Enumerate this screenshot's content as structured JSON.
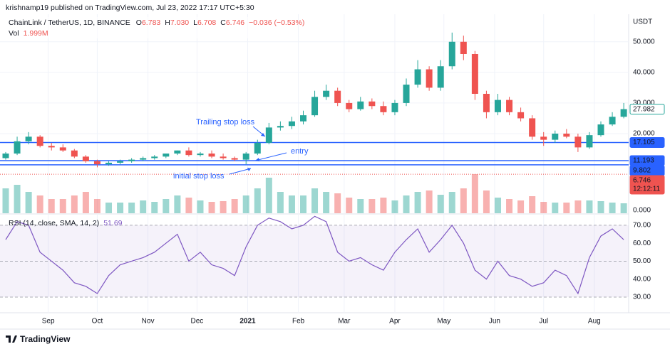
{
  "header": {
    "published": "krishnamp19 published on TradingView.com, Jul 23, 2022 17:17 UTC+5:30"
  },
  "chart_data": {
    "type": "candlestick",
    "legend": {
      "symbol": "ChainLink / TetherUS, 1D, BINANCE",
      "fields": [
        {
          "key": "O",
          "value": "6.783"
        },
        {
          "key": "H",
          "value": "7.030"
        },
        {
          "key": "L",
          "value": "6.708"
        },
        {
          "key": "C",
          "value": "6.746"
        }
      ],
      "change": "−0.036 (−0.53%)",
      "volume_label": "Vol",
      "volume_value": "1.999M"
    },
    "unit": "USDT",
    "x": [
      0,
      7,
      14,
      21,
      28,
      35,
      42,
      49,
      56,
      63,
      70,
      77,
      84,
      91,
      98,
      105,
      112,
      119,
      126,
      133,
      140,
      147,
      154,
      161,
      168,
      175,
      182,
      189,
      196,
      203,
      210,
      217,
      224,
      231,
      238,
      245,
      252,
      259,
      266,
      273,
      280,
      287,
      294,
      301,
      308,
      315,
      322,
      329,
      336,
      343,
      350,
      357,
      364,
      371,
      378
    ],
    "xlim": [
      0,
      381
    ],
    "xticks": [
      {
        "value": 26,
        "label": "Sep"
      },
      {
        "value": 56,
        "label": "Oct"
      },
      {
        "value": 87,
        "label": "Nov"
      },
      {
        "value": 117,
        "label": "Dec"
      },
      {
        "value": 148,
        "label": "2021"
      },
      {
        "value": 179,
        "label": "Feb"
      },
      {
        "value": 207,
        "label": "Mar"
      },
      {
        "value": 238,
        "label": "Apr"
      },
      {
        "value": 268,
        "label": "May"
      },
      {
        "value": 299,
        "label": "Jun"
      },
      {
        "value": 329,
        "label": "Jul"
      },
      {
        "value": 360,
        "label": "Aug"
      }
    ],
    "open": [
      12.0,
      13.5,
      17.5,
      19.0,
      16.0,
      15.5,
      14.5,
      12.5,
      11.0,
      10.0,
      10.5,
      11.0,
      11.5,
      12.0,
      12.5,
      13.5,
      14.5,
      13.0,
      13.5,
      12.5,
      12.0,
      11.5,
      13.5,
      17.0,
      22.0,
      22.5,
      24.0,
      26.0,
      32.0,
      34.0,
      30.0,
      28.0,
      30.5,
      29.0,
      27.0,
      30.0,
      36.0,
      41.0,
      35.0,
      42.0,
      50.0,
      46.0,
      33.0,
      27.0,
      31.0,
      27.0,
      25.0,
      19.0,
      18.0,
      20.0,
      19.0,
      15.5,
      19.5,
      23.0,
      25.5
    ],
    "high": [
      14.0,
      19.0,
      20.5,
      19.5,
      17.0,
      16.5,
      15.0,
      13.0,
      11.5,
      11.0,
      11.5,
      12.0,
      12.5,
      13.0,
      13.5,
      14.5,
      15.5,
      14.0,
      14.5,
      13.5,
      12.5,
      14.0,
      18.0,
      23.5,
      24.0,
      25.5,
      27.5,
      34.0,
      36.0,
      35.0,
      31.0,
      32.0,
      31.5,
      30.5,
      31.0,
      38.0,
      44.0,
      42.0,
      44.0,
      53.0,
      52.0,
      47.0,
      34.0,
      33.0,
      32.0,
      28.5,
      26.0,
      20.5,
      21.0,
      21.5,
      20.0,
      20.5,
      24.0,
      27.0,
      30.0
    ],
    "low": [
      11.5,
      13.0,
      16.5,
      15.5,
      14.5,
      14.0,
      12.0,
      10.5,
      9.0,
      9.5,
      10.0,
      10.5,
      11.0,
      11.5,
      12.0,
      13.0,
      12.5,
      12.5,
      12.0,
      11.5,
      11.0,
      10.0,
      13.0,
      16.5,
      21.0,
      21.5,
      23.0,
      25.5,
      31.0,
      29.0,
      27.0,
      27.5,
      28.0,
      26.0,
      26.0,
      29.0,
      35.0,
      34.0,
      34.0,
      41.0,
      44.0,
      31.0,
      25.0,
      26.0,
      26.0,
      24.0,
      18.0,
      16.0,
      17.0,
      18.5,
      14.0,
      15.0,
      19.0,
      22.5,
      25.0
    ],
    "close": [
      13.5,
      17.5,
      19.0,
      16.0,
      15.5,
      14.5,
      12.5,
      11.0,
      10.0,
      10.5,
      11.0,
      11.5,
      12.0,
      12.5,
      13.5,
      14.5,
      13.0,
      13.5,
      12.5,
      12.0,
      11.5,
      13.5,
      17.0,
      22.0,
      22.5,
      24.0,
      26.0,
      32.0,
      34.0,
      30.0,
      28.0,
      30.5,
      29.0,
      27.0,
      30.0,
      36.0,
      41.0,
      35.0,
      42.0,
      50.0,
      46.0,
      33.0,
      27.0,
      31.0,
      27.0,
      25.0,
      19.0,
      18.0,
      20.0,
      19.0,
      15.5,
      19.5,
      23.0,
      25.5,
      28.0
    ],
    "up_color": "#26a69a",
    "down_color": "#ef5350",
    "ylim": [
      -6,
      59
    ],
    "yticks": [
      {
        "value": 20,
        "label": "20.000"
      },
      {
        "value": 30,
        "label": "30.000"
      },
      {
        "value": 40,
        "label": "40.000"
      },
      {
        "value": 50,
        "label": "50.000"
      }
    ],
    "grid": true,
    "price_marker": {
      "value": 27.982,
      "color": "#26a69a"
    },
    "price_lines": {
      "color": "#2962ff",
      "values": [
        17.105,
        11.193,
        9.802
      ]
    },
    "last_price": {
      "value": 6.746,
      "countdown": "12:12:11",
      "color": "#ef5350"
    },
    "annotations": [
      "Trailing stop loss",
      "entry",
      "initial stop loss"
    ],
    "volume": {
      "values": [
        3.5,
        4.0,
        3.0,
        2.5,
        2.0,
        2.0,
        2.5,
        3.0,
        2.0,
        1.5,
        1.5,
        1.5,
        1.8,
        1.6,
        2.0,
        2.5,
        2.2,
        1.8,
        1.6,
        1.7,
        2.0,
        2.5,
        3.5,
        5.0,
        3.0,
        2.5,
        2.5,
        3.5,
        3.0,
        2.8,
        2.2,
        2.0,
        2.0,
        2.2,
        1.8,
        2.5,
        3.0,
        3.2,
        2.6,
        3.0,
        3.5,
        5.5,
        3.2,
        2.2,
        2.0,
        1.8,
        2.4,
        1.6,
        1.5,
        1.5,
        1.8,
        1.8,
        1.7,
        1.5,
        1.4
      ],
      "ylim": [
        0,
        6
      ],
      "yticks": [
        {
          "value": 0,
          "label": "0.000"
        }
      ]
    },
    "rsi": {
      "title": "RSI (14, close, SMA, 14, 2)",
      "last": "51.69",
      "color": "#7e57c2",
      "values": [
        62,
        72,
        70,
        55,
        50,
        45,
        38,
        36,
        32,
        42,
        48,
        50,
        52,
        55,
        60,
        65,
        50,
        55,
        48,
        46,
        42,
        58,
        70,
        74,
        72,
        68,
        70,
        75,
        72,
        55,
        50,
        52,
        48,
        45,
        55,
        62,
        68,
        55,
        62,
        70,
        60,
        45,
        40,
        50,
        42,
        40,
        36,
        38,
        45,
        42,
        32,
        52,
        64,
        68,
        62
      ],
      "ylim": [
        21.3,
        75.9
      ],
      "yticks": [
        {
          "value": 30,
          "label": "30.00"
        },
        {
          "value": 40,
          "label": "40.00"
        },
        {
          "value": 50,
          "label": "50.00"
        },
        {
          "value": 60,
          "label": "60.00"
        },
        {
          "value": 70,
          "label": "70.00"
        }
      ],
      "band": [
        30,
        70
      ],
      "mid": 50
    }
  },
  "footer": {
    "brand": "TradingView"
  }
}
